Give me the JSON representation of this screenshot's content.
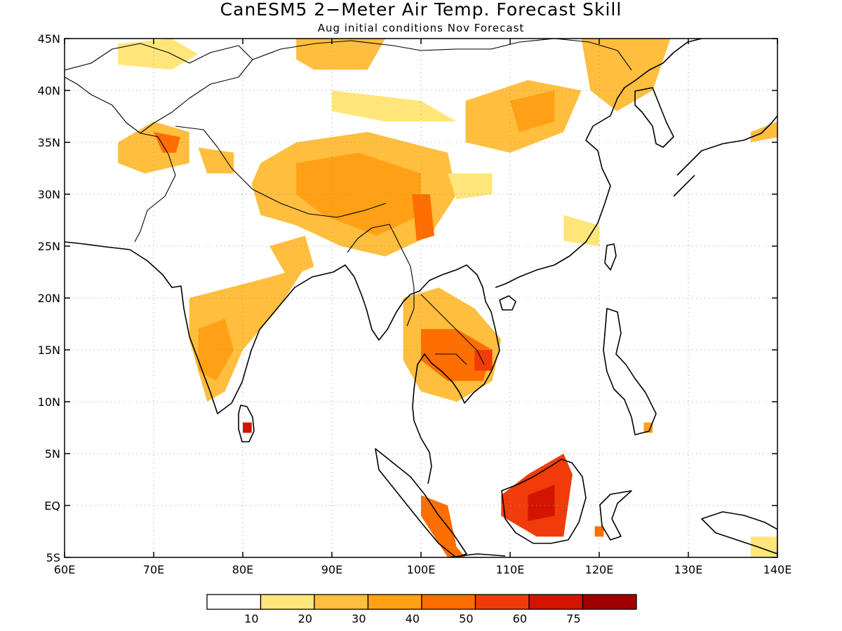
{
  "title": "CanESM5 2−Meter Air Temp. Forecast Skill",
  "subtitle": "Aug initial conditions  Nov Forecast",
  "map": {
    "lon_range": [
      60,
      140
    ],
    "lat_range": [
      -5,
      45
    ],
    "lon_ticks": [
      "60E",
      "70E",
      "80E",
      "90E",
      "100E",
      "110E",
      "120E",
      "130E",
      "140E"
    ],
    "lat_ticks": [
      "5S",
      "EQ",
      "5N",
      "10N",
      "15N",
      "20N",
      "25N",
      "30N",
      "35N",
      "40N",
      "45N"
    ],
    "gridlines": "dotted"
  },
  "colorbar": {
    "labels": [
      "10",
      "20",
      "30",
      "40",
      "50",
      "60",
      "75"
    ],
    "colors": [
      "#ffffff",
      "#ffe57a",
      "#ffbe3e",
      "#ffa015",
      "#ff6e00",
      "#f03c0a",
      "#d21400",
      "#a00000"
    ]
  },
  "shading": [
    {
      "name": "siberia-west",
      "level": 1,
      "ring": [
        [
          66,
          44.5
        ],
        [
          72,
          45
        ],
        [
          75,
          43.5
        ],
        [
          72,
          42
        ],
        [
          66,
          42.5
        ]
      ]
    },
    {
      "name": "mongolia-west",
      "level": 2,
      "ring": [
        [
          86,
          45
        ],
        [
          96,
          45
        ],
        [
          94,
          42
        ],
        [
          88,
          42
        ],
        [
          86,
          43
        ]
      ]
    },
    {
      "name": "manchuria",
      "level": 2,
      "ring": [
        [
          118,
          45
        ],
        [
          128,
          45
        ],
        [
          126,
          40
        ],
        [
          122,
          38
        ],
        [
          119,
          40
        ]
      ]
    },
    {
      "name": "pakistan-north",
      "level": 2,
      "ring": [
        [
          66,
          35
        ],
        [
          70,
          37
        ],
        [
          74,
          36
        ],
        [
          74,
          33
        ],
        [
          69,
          32
        ],
        [
          66,
          33
        ]
      ]
    },
    {
      "name": "pakistan-core",
      "level": 4,
      "ring": [
        [
          70,
          36
        ],
        [
          73,
          35.5
        ],
        [
          72.5,
          34
        ],
        [
          71,
          34
        ]
      ]
    },
    {
      "name": "kashmir",
      "level": 2,
      "ring": [
        [
          75,
          34.5
        ],
        [
          79,
          34
        ],
        [
          79,
          32
        ],
        [
          76,
          32
        ]
      ]
    },
    {
      "name": "tibet",
      "level": 2,
      "ring": [
        [
          82,
          33
        ],
        [
          86,
          35
        ],
        [
          94,
          36
        ],
        [
          103,
          34
        ],
        [
          104,
          30
        ],
        [
          101,
          26
        ],
        [
          96,
          24
        ],
        [
          91,
          25
        ],
        [
          86,
          27
        ],
        [
          82,
          28
        ],
        [
          81,
          31
        ]
      ]
    },
    {
      "name": "tibet-core",
      "level": 3,
      "ring": [
        [
          86,
          33
        ],
        [
          93,
          34
        ],
        [
          100,
          32
        ],
        [
          100,
          28
        ],
        [
          95,
          26
        ],
        [
          89,
          28
        ],
        [
          86,
          30
        ]
      ]
    },
    {
      "name": "yunnan",
      "level": 4,
      "ring": [
        [
          99,
          30
        ],
        [
          101,
          30
        ],
        [
          101.5,
          26
        ],
        [
          99.5,
          25.5
        ]
      ]
    },
    {
      "name": "china-north",
      "level": 2,
      "ring": [
        [
          105,
          39
        ],
        [
          112,
          41
        ],
        [
          118,
          40
        ],
        [
          116,
          36
        ],
        [
          110,
          34
        ],
        [
          105,
          35
        ]
      ]
    },
    {
      "name": "china-north-core",
      "level": 3,
      "ring": [
        [
          110,
          39
        ],
        [
          115,
          40
        ],
        [
          115,
          37
        ],
        [
          111,
          36
        ]
      ]
    },
    {
      "name": "china-west",
      "level": 1,
      "ring": [
        [
          90,
          40
        ],
        [
          100,
          39
        ],
        [
          104,
          37
        ],
        [
          96,
          37
        ],
        [
          90,
          38
        ]
      ]
    },
    {
      "name": "china-southwest",
      "level": 1,
      "ring": [
        [
          103,
          32
        ],
        [
          108,
          32
        ],
        [
          108,
          30
        ],
        [
          104,
          29.5
        ]
      ]
    },
    {
      "name": "china-southeast",
      "level": 1,
      "ring": [
        [
          116,
          28
        ],
        [
          120,
          27
        ],
        [
          120,
          25
        ],
        [
          116,
          25.5
        ]
      ]
    },
    {
      "name": "india-central",
      "level": 2,
      "ring": [
        [
          74,
          20
        ],
        [
          83,
          22
        ],
        [
          87,
          23
        ],
        [
          84,
          19
        ],
        [
          80,
          15
        ],
        [
          78,
          11
        ],
        [
          76,
          10
        ],
        [
          74,
          16
        ]
      ]
    },
    {
      "name": "india-core",
      "level": 3,
      "ring": [
        [
          75,
          17
        ],
        [
          78,
          18
        ],
        [
          79,
          15
        ],
        [
          77,
          12
        ],
        [
          75,
          13
        ]
      ]
    },
    {
      "name": "india-north",
      "level": 2,
      "ring": [
        [
          83,
          25
        ],
        [
          87,
          26
        ],
        [
          88,
          23
        ],
        [
          85,
          22
        ]
      ]
    },
    {
      "name": "srilanka",
      "level": 6,
      "ring": [
        [
          80,
          8
        ],
        [
          81,
          8
        ],
        [
          81,
          7
        ],
        [
          80,
          7
        ]
      ]
    },
    {
      "name": "indochina",
      "level": 2,
      "ring": [
        [
          98,
          20
        ],
        [
          102,
          21
        ],
        [
          106,
          19
        ],
        [
          109,
          16
        ],
        [
          108,
          12
        ],
        [
          104,
          10
        ],
        [
          100,
          11
        ],
        [
          98,
          14
        ]
      ]
    },
    {
      "name": "indochina-core",
      "level": 4,
      "ring": [
        [
          100,
          17
        ],
        [
          104,
          17
        ],
        [
          108,
          15
        ],
        [
          107,
          12
        ],
        [
          103,
          12
        ],
        [
          100,
          14
        ]
      ]
    },
    {
      "name": "indochina-hot",
      "level": 5,
      "ring": [
        [
          106,
          15
        ],
        [
          108,
          15
        ],
        [
          108,
          13
        ],
        [
          106,
          13
        ]
      ]
    },
    {
      "name": "borneo",
      "level": 5,
      "ring": [
        [
          109,
          1
        ],
        [
          112,
          3
        ],
        [
          116,
          5
        ],
        [
          117,
          3
        ],
        [
          116,
          -3
        ],
        [
          113,
          -3
        ],
        [
          109,
          -1
        ]
      ]
    },
    {
      "name": "borneo-core",
      "level": 6,
      "ring": [
        [
          112,
          1
        ],
        [
          115,
          2
        ],
        [
          115,
          -1
        ],
        [
          112,
          -1.5
        ]
      ]
    },
    {
      "name": "sumatra",
      "level": 4,
      "ring": [
        [
          100,
          1
        ],
        [
          103,
          0
        ],
        [
          104,
          -4
        ],
        [
          105,
          -5
        ],
        [
          103,
          -5
        ],
        [
          100,
          -1
        ]
      ]
    },
    {
      "name": "sulawesi",
      "level": 4,
      "ring": [
        [
          119.5,
          -2
        ],
        [
          120.5,
          -2
        ],
        [
          120.5,
          -3
        ],
        [
          119.5,
          -3
        ]
      ]
    },
    {
      "name": "philippines",
      "level": 3,
      "ring": [
        [
          125,
          8
        ],
        [
          126,
          8
        ],
        [
          126,
          7
        ],
        [
          125,
          7
        ]
      ]
    },
    {
      "name": "japan",
      "level": 2,
      "ring": [
        [
          137,
          36
        ],
        [
          140,
          37
        ],
        [
          140,
          35.5
        ],
        [
          137,
          35
        ]
      ]
    },
    {
      "name": "newguinea",
      "level": 1,
      "ring": [
        [
          137,
          -3
        ],
        [
          140,
          -3
        ],
        [
          140,
          -5
        ],
        [
          137,
          -5
        ]
      ]
    }
  ]
}
